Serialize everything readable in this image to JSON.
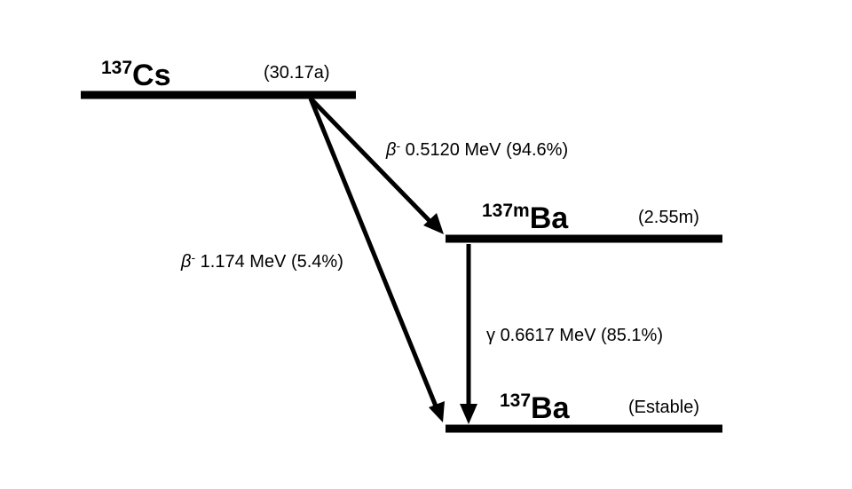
{
  "levels": {
    "cs137": {
      "mass": "137",
      "element": "Cs",
      "half_life": "(30.17a)"
    },
    "ba137m": {
      "mass": "137m",
      "element": "Ba",
      "half_life": "(2.55m)"
    },
    "ba137": {
      "mass": "137",
      "element": "Ba",
      "half_life": "(Estable)"
    }
  },
  "transitions": {
    "beta_main": {
      "symbol": "β",
      "charge": "-",
      "text": "0.5120 MeV (94.6%)"
    },
    "beta_minor": {
      "symbol": "β",
      "charge": "-",
      "text": "1.174 MeV (5.4%)"
    },
    "gamma": {
      "symbol": "γ",
      "text": "0.6617 MeV (85.1%)"
    }
  },
  "colors": {
    "ink": "#000000",
    "background": "#ffffff"
  }
}
